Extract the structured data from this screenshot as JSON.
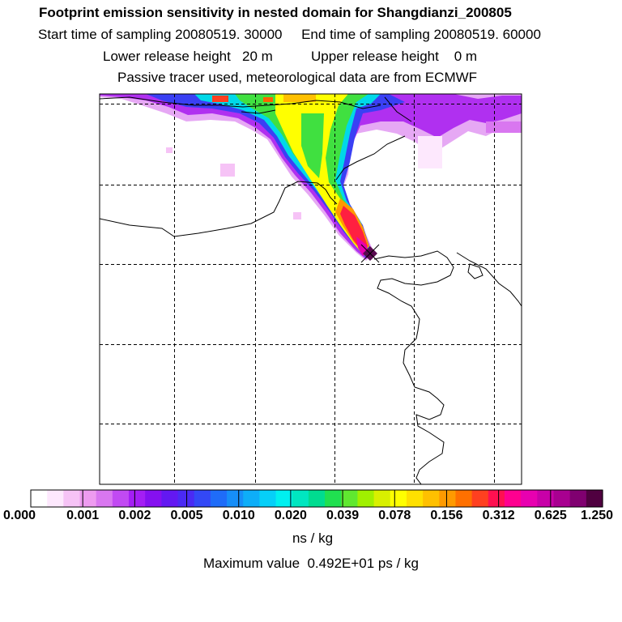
{
  "header": {
    "title": "Footprint emission sensitivity in nested domain for Shangdianzi_200805",
    "line2": "Start time of sampling 20080519. 30000     End time of sampling 20080519. 60000",
    "line3": "Lower release height   20 m          Upper release height    0 m",
    "line4": "Passive tracer used, meteorological data are from ECMWF"
  },
  "legend": {
    "ticks": [
      "0.000",
      "0.001",
      "0.002",
      "0.005",
      "0.010",
      "0.020",
      "0.039",
      "0.078",
      "0.156",
      "0.312",
      "0.625",
      "1.250"
    ],
    "units": "ns / kg",
    "max_value": "Maximum value  0.492E+01 ps / kg"
  },
  "colors": {
    "scale": [
      "#ffffff",
      "#fde8fd",
      "#f6c3f6",
      "#ee9bf0",
      "#d977f0",
      "#c14af2",
      "#a41ef4",
      "#8510f0",
      "#6318f2",
      "#4a2af4",
      "#3348f6",
      "#1f6cf8",
      "#168ef8",
      "#0eaef8",
      "#06cff8",
      "#00f0f0",
      "#00e6c0",
      "#00dc90",
      "#20e050",
      "#60e830",
      "#a0f000",
      "#d8f000",
      "#ffff00",
      "#ffe000",
      "#ffc000",
      "#ff9a00",
      "#ff7000",
      "#ff4020",
      "#ff1050",
      "#ff0090",
      "#e800b0",
      "#c800a8",
      "#a80090",
      "#800070",
      "#500040"
    ],
    "receptor": "#5a0a50",
    "coast": "#000000",
    "grid": "#000000"
  },
  "map": {
    "receptor_name": "Shangdianzi"
  }
}
